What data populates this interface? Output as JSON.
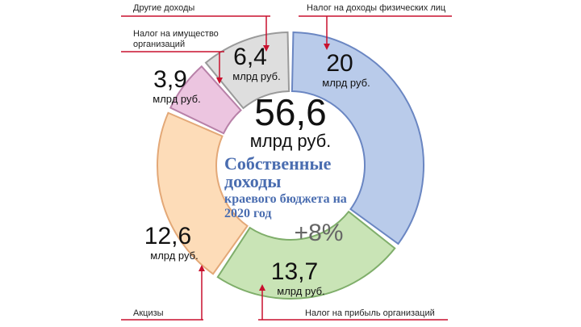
{
  "chart_data": {
    "type": "donut",
    "title": "Собственные доходы",
    "subtitle": "краевого бюджета на 2020 год",
    "total": {
      "value": 56.6,
      "label": "56,6"
    },
    "unit": "млрд руб.",
    "change": "+8%",
    "categories": [
      "Налог на доходы физических лиц",
      "Налог на прибыль организаций",
      "Акцизы",
      "Налог на имущество организаций",
      "Другие доходы"
    ],
    "values": [
      20,
      13.7,
      12.6,
      3.9,
      6.4
    ],
    "value_labels": [
      "20",
      "13,7",
      "12,6",
      "3,9",
      "6,4"
    ],
    "colors": [
      "#b9cbea",
      "#c9e4b6",
      "#fddcb8",
      "#ecc5e0",
      "#dedede"
    ],
    "stroke_colors": [
      "#6a86c2",
      "#7fae6a",
      "#e3a877",
      "#b881a8",
      "#9a9a9a"
    ]
  }
}
